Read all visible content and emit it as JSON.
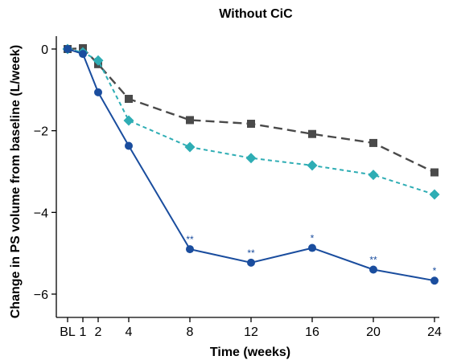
{
  "chart_data": {
    "type": "line",
    "title": "Without CiC",
    "xlabel": "Time (weeks)",
    "ylabel": "Change in PS volume from baseline (L/week)",
    "x_tick_labels": [
      "BL",
      "1",
      "2",
      "4",
      "8",
      "12",
      "16",
      "20",
      "24"
    ],
    "x": [
      0,
      1,
      2,
      4,
      8,
      12,
      16,
      20,
      24
    ],
    "ylim": [
      -6.5,
      0.3
    ],
    "yticks": [
      0,
      -2,
      -4,
      -6
    ],
    "grid": false,
    "series": [
      {
        "color": "#4a4a4a",
        "marker": "square",
        "dash": "long-dash",
        "values": [
          0,
          0.02,
          -0.37,
          -1.22,
          -1.74,
          -1.83,
          -2.08,
          -2.3,
          -3.02
        ]
      },
      {
        "color": "#2eadb4",
        "marker": "diamond",
        "dash": "short-dash",
        "values": [
          0,
          -0.08,
          -0.28,
          -1.75,
          -2.4,
          -2.67,
          -2.85,
          -3.08,
          -3.56
        ]
      },
      {
        "color": "#1a4d9e",
        "marker": "circle",
        "dash": "solid",
        "values": [
          0,
          -0.12,
          -1.06,
          -2.37,
          -4.9,
          -5.23,
          -4.87,
          -5.4,
          -5.67
        ],
        "annotations": [
          "",
          "",
          "",
          "",
          "**",
          "**",
          "*",
          "**",
          "*"
        ]
      }
    ]
  }
}
